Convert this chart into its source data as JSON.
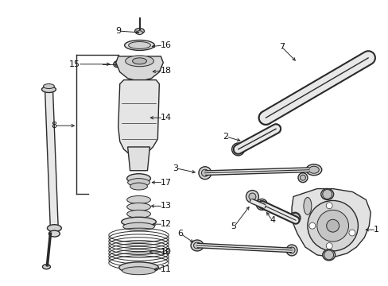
{
  "bg_color": "#ffffff",
  "line_color": "#2a2a2a",
  "label_color": "#111111",
  "arrow_color": "#2a2a2a"
}
